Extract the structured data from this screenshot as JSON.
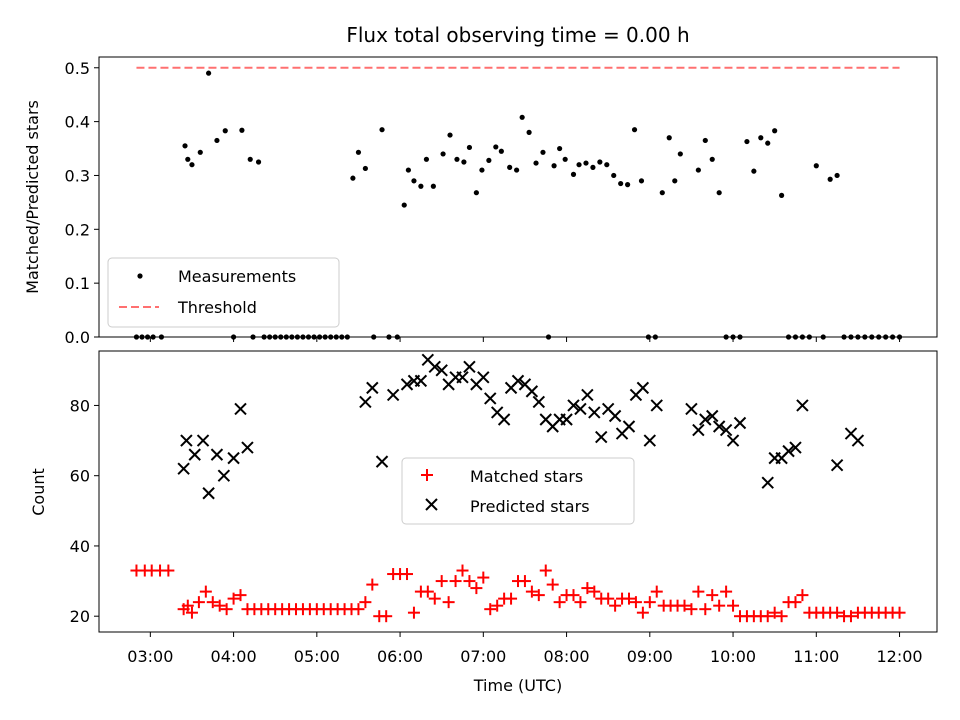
{
  "chart_data": [
    {
      "type": "scatter",
      "title": "Flux total observing time = 0.00 h",
      "xlabel": "",
      "ylabel": "Matched/Predicted stars",
      "xlim": [
        "02:23",
        "12:27"
      ],
      "ylim": [
        0,
        0.52
      ],
      "yticks": [
        0.0,
        0.1,
        0.2,
        0.3,
        0.4,
        0.5
      ],
      "ytick_labels": [
        "0.0",
        "0.1",
        "0.2",
        "0.3",
        "0.4",
        "0.5"
      ],
      "legend_position": "lower-left",
      "grid": false,
      "threshold": {
        "name": "Threshold",
        "y": 0.5,
        "x_from": "02:50",
        "x_to": "12:00",
        "color": "#ff7070",
        "style": "dashed"
      },
      "series": [
        {
          "name": "Measurements",
          "color": "#000000",
          "marker": "dot",
          "x": [
            "02:50",
            "02:54",
            "02:58",
            "03:02",
            "03:08",
            "03:25",
            "03:27",
            "03:30",
            "03:36",
            "03:42",
            "03:48",
            "03:54",
            "04:00",
            "04:06",
            "04:12",
            "04:14",
            "04:18",
            "04:22",
            "04:26",
            "04:30",
            "04:34",
            "04:38",
            "04:42",
            "04:46",
            "04:50",
            "04:54",
            "04:58",
            "05:02",
            "05:06",
            "05:10",
            "05:14",
            "05:18",
            "05:22",
            "05:26",
            "05:30",
            "05:35",
            "05:41",
            "05:47",
            "05:52",
            "05:58",
            "06:03",
            "06:06",
            "06:10",
            "06:15",
            "06:19",
            "06:24",
            "06:31",
            "06:36",
            "06:41",
            "06:46",
            "06:50",
            "06:55",
            "06:59",
            "07:04",
            "07:09",
            "07:13",
            "07:19",
            "07:24",
            "07:28",
            "07:33",
            "07:38",
            "07:43",
            "07:47",
            "07:51",
            "07:55",
            "07:59",
            "08:05",
            "08:09",
            "08:14",
            "08:19",
            "08:24",
            "08:29",
            "08:34",
            "08:39",
            "08:44",
            "08:49",
            "08:54",
            "08:59",
            "09:04",
            "09:09",
            "09:14",
            "09:18",
            "09:22",
            "09:35",
            "09:40",
            "09:45",
            "09:50",
            "09:55",
            "10:00",
            "10:05",
            "10:10",
            "10:15",
            "10:20",
            "10:25",
            "10:30",
            "10:35",
            "10:40",
            "10:45",
            "10:50",
            "10:55",
            "11:00",
            "11:05",
            "11:10",
            "11:15",
            "11:20",
            "11:25",
            "11:30",
            "11:35",
            "11:40",
            "11:45",
            "11:50",
            "11:55",
            "12:00"
          ],
          "y": [
            0,
            0,
            0,
            0,
            0,
            0.355,
            0.33,
            0.32,
            0.343,
            0.49,
            0.365,
            0.383,
            0,
            0.384,
            0.33,
            0,
            0.325,
            0,
            0,
            0,
            0,
            0,
            0,
            0,
            0,
            0,
            0,
            0,
            0,
            0,
            0,
            0,
            0,
            0.295,
            0.343,
            0.313,
            0,
            0.385,
            0,
            0,
            0.245,
            0.31,
            0.29,
            0.28,
            0.33,
            0.28,
            0.34,
            0.375,
            0.33,
            0.325,
            0.352,
            0.268,
            0.31,
            0.328,
            0.353,
            0.345,
            0.315,
            0.31,
            0.408,
            0.38,
            0.323,
            0.343,
            0,
            0.318,
            0.35,
            0.33,
            0.302,
            0.32,
            0.323,
            0.315,
            0.325,
            0.32,
            0.3,
            0.285,
            0.283,
            0.385,
            0.29,
            0,
            0,
            0.268,
            0.37,
            0.29,
            0.34,
            0.31,
            0.365,
            0.33,
            0.268,
            0,
            0,
            0,
            0.363,
            0.308,
            0.37,
            0.36,
            0.383,
            0.263,
            0,
            0,
            0,
            0,
            0.318,
            0,
            0.293,
            0.3,
            0,
            0,
            0,
            0,
            0,
            0,
            0,
            0,
            0
          ]
        }
      ]
    },
    {
      "type": "scatter",
      "title": "",
      "xlabel": "Time (UTC)",
      "ylabel": "Count",
      "xlim": [
        "02:23",
        "12:27"
      ],
      "ylim": [
        15.5,
        95.5
      ],
      "yticks": [
        20,
        40,
        60,
        80
      ],
      "ytick_labels": [
        "20",
        "40",
        "60",
        "80"
      ],
      "xticks": [
        "03:00",
        "04:00",
        "05:00",
        "06:00",
        "07:00",
        "08:00",
        "09:00",
        "10:00",
        "11:00",
        "12:00"
      ],
      "xtick_labels": [
        "03:00",
        "04:00",
        "05:00",
        "06:00",
        "07:00",
        "08:00",
        "09:00",
        "10:00",
        "11:00",
        "12:00"
      ],
      "legend_position": "center",
      "grid": false,
      "series": [
        {
          "name": "Matched stars",
          "color": "#ff0000",
          "marker": "plus",
          "x": [
            "02:50",
            "02:56",
            "03:01",
            "03:07",
            "03:13",
            "03:24",
            "03:27",
            "03:30",
            "03:35",
            "03:40",
            "03:45",
            "03:50",
            "03:55",
            "04:00",
            "04:05",
            "04:10",
            "04:15",
            "04:20",
            "04:25",
            "04:30",
            "04:35",
            "04:40",
            "04:45",
            "04:50",
            "04:55",
            "05:00",
            "05:05",
            "05:10",
            "05:15",
            "05:20",
            "05:25",
            "05:30",
            "05:35",
            "05:40",
            "05:45",
            "05:50",
            "05:55",
            "06:00",
            "06:05",
            "06:10",
            "06:15",
            "06:20",
            "06:25",
            "06:30",
            "06:35",
            "06:40",
            "06:45",
            "06:50",
            "06:55",
            "07:00",
            "07:05",
            "07:10",
            "07:15",
            "07:20",
            "07:25",
            "07:30",
            "07:35",
            "07:40",
            "07:45",
            "07:50",
            "07:55",
            "08:00",
            "08:05",
            "08:10",
            "08:15",
            "08:20",
            "08:25",
            "08:30",
            "08:35",
            "08:40",
            "08:45",
            "08:50",
            "08:55",
            "09:00",
            "09:05",
            "09:10",
            "09:15",
            "09:20",
            "09:25",
            "09:30",
            "09:35",
            "09:40",
            "09:45",
            "09:50",
            "09:55",
            "10:00",
            "10:05",
            "10:10",
            "10:15",
            "10:20",
            "10:25",
            "10:30",
            "10:35",
            "10:40",
            "10:45",
            "10:50",
            "10:55",
            "11:00",
            "11:05",
            "11:10",
            "11:15",
            "11:20",
            "11:25",
            "11:30",
            "11:35",
            "11:40",
            "11:45",
            "11:50",
            "11:55",
            "12:00"
          ],
          "y": [
            33,
            33,
            33,
            33,
            33,
            22,
            23,
            21,
            24,
            27,
            24,
            23,
            22,
            25,
            26,
            22,
            22,
            22,
            22,
            22,
            22,
            22,
            22,
            22,
            22,
            22,
            22,
            22,
            22,
            22,
            22,
            22,
            24,
            29,
            20,
            20,
            32,
            32,
            32,
            21,
            27,
            27,
            25,
            30,
            24,
            30,
            33,
            30,
            28,
            31,
            22,
            23,
            25,
            25,
            30,
            30,
            27,
            26,
            33,
            29,
            24,
            26,
            26,
            24,
            28,
            27,
            25,
            25,
            23,
            25,
            25,
            24,
            21,
            24,
            27,
            23,
            23,
            23,
            23,
            22,
            27,
            22,
            26,
            23,
            27,
            23,
            20,
            20,
            20,
            20,
            20,
            21,
            20,
            24,
            24,
            26,
            21,
            21,
            21,
            21,
            21,
            20,
            20,
            21,
            21,
            21,
            21,
            21,
            21,
            21
          ]
        },
        {
          "name": "Predicted stars",
          "color": "#000000",
          "marker": "x",
          "x": [
            "03:24",
            "03:26",
            "03:32",
            "03:38",
            "03:42",
            "03:48",
            "03:53",
            "04:00",
            "04:05",
            "04:10",
            "05:35",
            "05:40",
            "05:47",
            "05:55",
            "06:05",
            "06:10",
            "06:15",
            "06:20",
            "06:25",
            "06:30",
            "06:35",
            "06:40",
            "06:45",
            "06:50",
            "06:55",
            "07:00",
            "07:05",
            "07:10",
            "07:15",
            "07:20",
            "07:25",
            "07:30",
            "07:35",
            "07:40",
            "07:45",
            "07:50",
            "07:55",
            "08:00",
            "08:05",
            "08:10",
            "08:15",
            "08:20",
            "08:25",
            "08:30",
            "08:35",
            "08:40",
            "08:45",
            "08:50",
            "08:55",
            "09:00",
            "09:05",
            "09:30",
            "09:35",
            "09:40",
            "09:45",
            "09:50",
            "09:55",
            "10:00",
            "10:05",
            "10:25",
            "10:30",
            "10:35",
            "10:40",
            "10:45",
            "10:50",
            "11:15",
            "11:25",
            "11:30"
          ],
          "y": [
            62,
            70,
            66,
            70,
            55,
            66,
            60,
            65,
            79,
            68,
            81,
            85,
            64,
            83,
            86,
            87,
            87,
            93,
            91,
            90,
            86,
            88,
            88,
            91,
            86,
            88,
            82,
            78,
            76,
            85,
            87,
            86,
            84,
            81,
            76,
            74,
            76,
            76,
            80,
            79,
            83,
            78,
            71,
            79,
            77,
            72,
            74,
            83,
            85,
            70,
            80,
            79,
            73,
            76,
            77,
            74,
            73,
            70,
            75,
            58,
            65,
            65,
            67,
            68,
            80,
            63,
            72,
            70
          ]
        }
      ]
    }
  ]
}
